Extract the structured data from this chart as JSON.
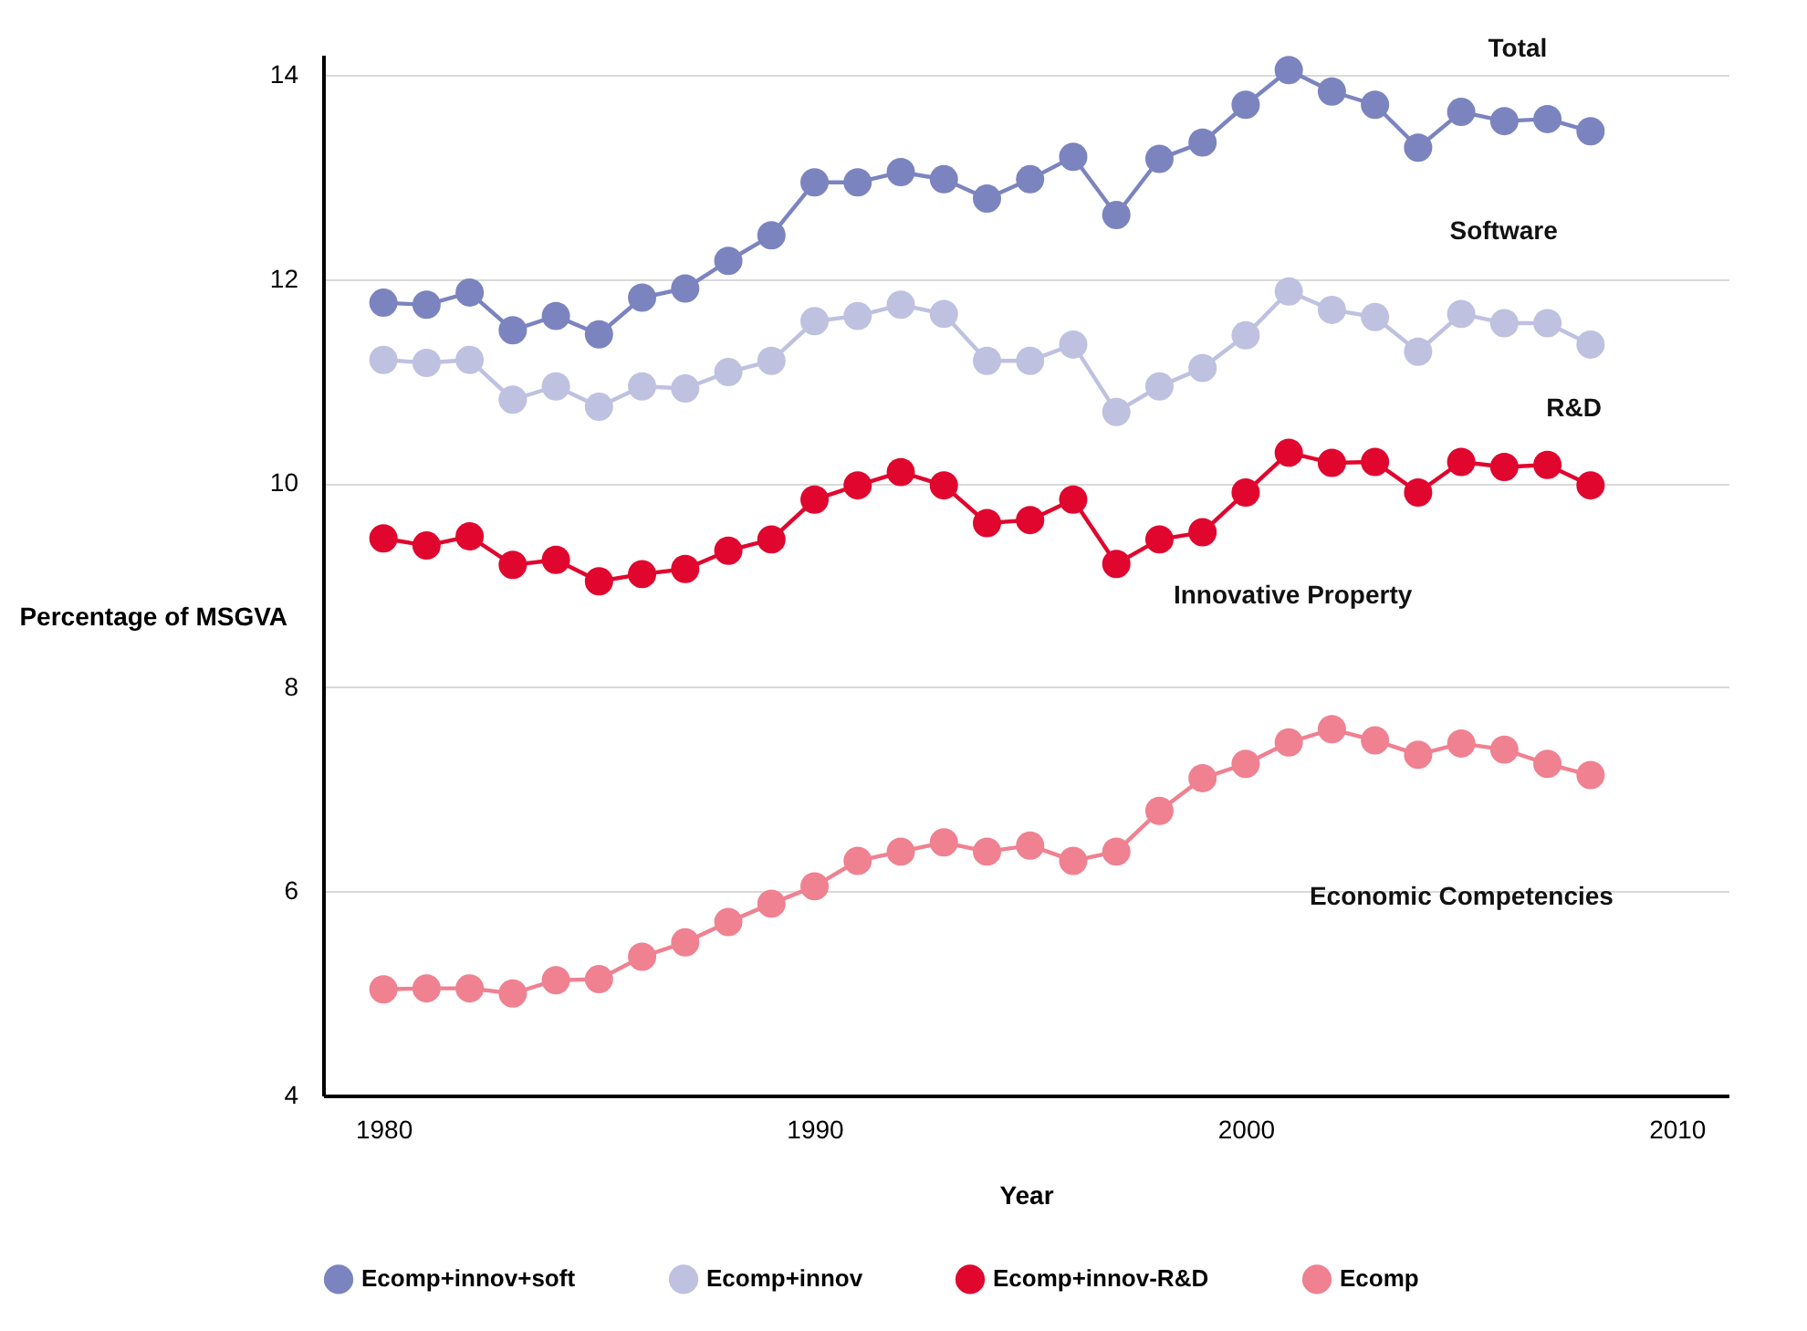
{
  "chart_data": {
    "type": "line",
    "xlabel": "Year",
    "ylabel": "Percentage of MSGVA",
    "x": [
      1980,
      1981,
      1982,
      1983,
      1984,
      1985,
      1986,
      1987,
      1988,
      1989,
      1990,
      1991,
      1992,
      1993,
      1994,
      1995,
      1996,
      1997,
      1998,
      1999,
      2000,
      2001,
      2002,
      2003,
      2004,
      2005,
      2006,
      2007,
      2008
    ],
    "series": [
      {
        "name": "Ecomp+innov+soft",
        "color": "#7b84bf",
        "values": [
          11.77,
          11.75,
          11.87,
          11.5,
          11.64,
          11.46,
          11.82,
          11.91,
          12.18,
          12.43,
          12.95,
          12.95,
          13.05,
          12.98,
          12.79,
          12.98,
          13.2,
          12.63,
          13.18,
          13.34,
          13.71,
          14.05,
          13.84,
          13.71,
          13.29,
          13.64,
          13.55,
          13.57,
          13.45
        ]
      },
      {
        "name": "Ecomp+innov",
        "color": "#bec1e0",
        "values": [
          11.21,
          11.18,
          11.21,
          10.82,
          10.95,
          10.75,
          10.95,
          10.93,
          11.09,
          11.2,
          11.59,
          11.64,
          11.75,
          11.66,
          11.2,
          11.2,
          11.36,
          10.7,
          10.95,
          11.13,
          11.45,
          11.88,
          11.7,
          11.63,
          11.29,
          11.66,
          11.57,
          11.57,
          11.36
        ]
      },
      {
        "name": "Ecomp+innov-R&D",
        "color": "#e0062e",
        "values": [
          9.46,
          9.39,
          9.48,
          9.2,
          9.25,
          9.04,
          9.11,
          9.16,
          9.34,
          9.45,
          9.84,
          9.98,
          10.11,
          9.98,
          9.61,
          9.64,
          9.84,
          9.21,
          9.45,
          9.52,
          9.91,
          10.3,
          10.2,
          10.21,
          9.91,
          10.21,
          10.16,
          10.18,
          9.98
        ]
      },
      {
        "name": "Ecomp",
        "color": "#ef8191",
        "values": [
          5.04,
          5.05,
          5.05,
          5.0,
          5.13,
          5.14,
          5.36,
          5.5,
          5.7,
          5.88,
          6.05,
          6.3,
          6.39,
          6.48,
          6.39,
          6.45,
          6.3,
          6.39,
          6.79,
          7.11,
          7.25,
          7.46,
          7.59,
          7.48,
          7.34,
          7.45,
          7.39,
          7.25,
          7.14
        ]
      }
    ],
    "annotations": [
      "Total",
      "Software",
      "R&D",
      "Innovative Property",
      "Economic Competencies"
    ],
    "xlim": [
      1978.6,
      2011.2
    ],
    "xticks": [
      1980,
      1990,
      2000,
      2010
    ],
    "ylim": [
      4,
      14.2
    ],
    "yticks": [
      4,
      6,
      8,
      10,
      12,
      14
    ],
    "grid": "y",
    "legend": "bottom",
    "marker": "circle",
    "line_style": "solid"
  }
}
